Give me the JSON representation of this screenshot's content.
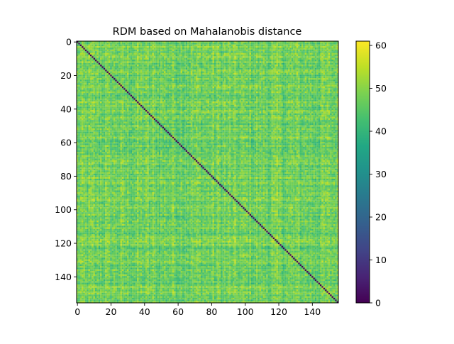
{
  "chart_data": {
    "type": "heatmap",
    "title": "RDM based on Mahalanobis distance",
    "xlabel": "",
    "ylabel": "",
    "n": 156,
    "x_ticks": [
      0,
      20,
      40,
      60,
      80,
      100,
      120,
      140
    ],
    "y_ticks": [
      0,
      20,
      40,
      60,
      80,
      100,
      120,
      140
    ],
    "colorbar": {
      "colormap": "viridis",
      "range": [
        0,
        61
      ],
      "ticks": [
        0,
        10,
        20,
        30,
        40,
        50,
        60
      ]
    },
    "diagonal_value": 0,
    "off_diagonal_typical_range": [
      38,
      61
    ],
    "off_diagonal_mean": 47
  }
}
